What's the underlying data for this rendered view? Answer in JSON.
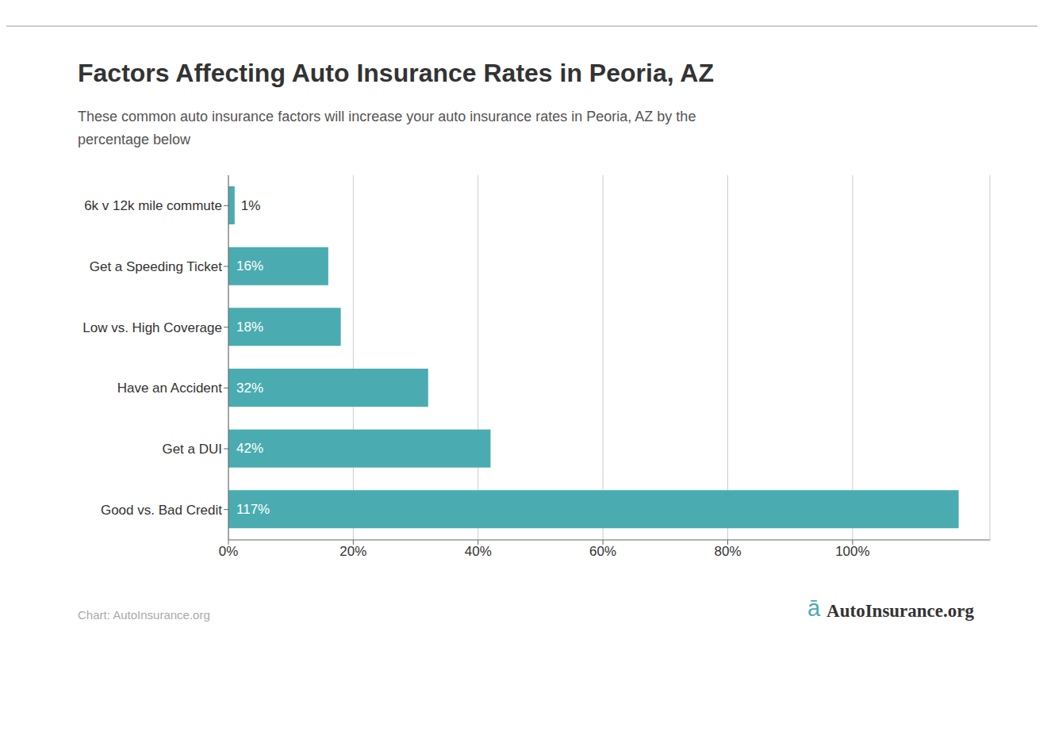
{
  "chart_data": {
    "type": "bar",
    "orientation": "horizontal",
    "title": "Factors Affecting Auto Insurance Rates in Peoria, AZ",
    "subtitle": "These common auto insurance factors will increase your auto insurance rates in Peoria, AZ by the\npercentage below",
    "categories": [
      "6k v 12k mile commute",
      "Get a Speeding Ticket",
      "Low vs. High Coverage",
      "Have an Accident",
      "Get a DUI",
      "Good vs. Bad Credit"
    ],
    "values": [
      1,
      16,
      18,
      32,
      42,
      117
    ],
    "value_labels": [
      "1%",
      "16%",
      "18%",
      "32%",
      "42%",
      "117%"
    ],
    "data_labels": true,
    "color": "#4AACB0",
    "xlim": [
      0,
      122
    ],
    "xticks": [
      {
        "value": 0,
        "label": "0%"
      },
      {
        "value": 20,
        "label": "20%"
      },
      {
        "value": 40,
        "label": "40%"
      },
      {
        "value": 60,
        "label": "60%"
      },
      {
        "value": 80,
        "label": "80%"
      },
      {
        "value": 100,
        "label": "100%"
      }
    ],
    "grid": true,
    "annotations": [
      "Chart: AutoInsurance.org",
      "ā",
      "AutoInsurance.org"
    ]
  }
}
